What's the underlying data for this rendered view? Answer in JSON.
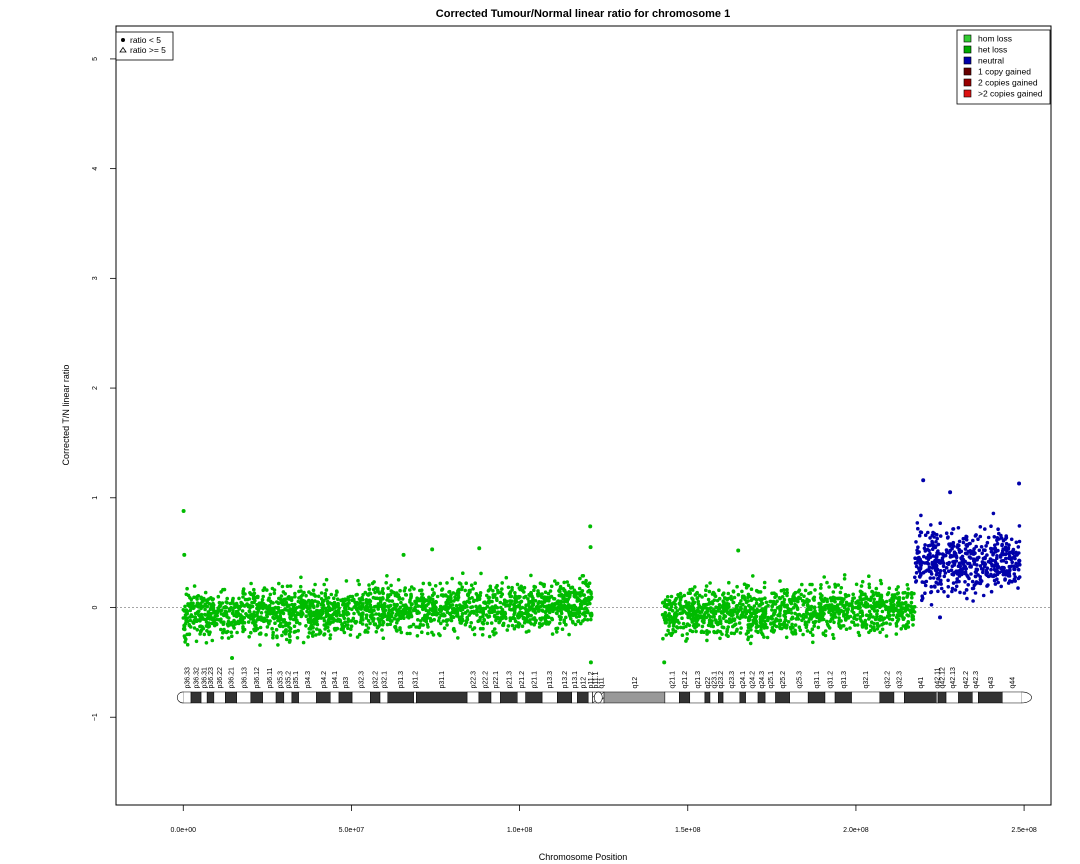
{
  "chart_data": {
    "type": "scatter",
    "title": "Corrected Tumour/Normal linear ratio for chromosome  1",
    "xlabel": "Chromosome Position",
    "ylabel": "Corrected T/N linear ratio",
    "xlim": [
      -20000000,
      258000000
    ],
    "ylim": [
      -1.8,
      5.3
    ],
    "x_ticks": [
      0,
      50000000,
      100000000,
      150000000,
      200000000,
      250000000
    ],
    "x_tick_labels": [
      "0.0e+00",
      "5.0e+07",
      "1.0e+08",
      "1.5e+08",
      "2.0e+08",
      "2.5e+08"
    ],
    "y_ticks": [
      -1,
      0,
      1,
      2,
      3,
      4,
      5
    ],
    "y_tick_labels": [
      "−1",
      "0",
      "1",
      "2",
      "3",
      "4",
      "5"
    ],
    "reference_line": 0,
    "shape_legend": {
      "placement": "top-left",
      "entries": [
        {
          "symbol": "circle",
          "label": "ratio < 5"
        },
        {
          "symbol": "triangle",
          "label": "ratio >= 5"
        }
      ]
    },
    "state_legend": {
      "placement": "top-right",
      "entries": [
        {
          "label": "hom loss",
          "color": "#33cc33"
        },
        {
          "label": "het loss",
          "color": "#00aa00"
        },
        {
          "label": "neutral",
          "color": "#0000aa"
        },
        {
          "label": "1 copy gained",
          "color": "#660000"
        },
        {
          "label": "2 copies gained",
          "color": "#990000"
        },
        {
          "label": ">2 copies gained",
          "color": "#dd1111"
        }
      ]
    },
    "series": [
      {
        "state": "het loss",
        "color": "#00bb00",
        "x_start": 0,
        "x_end": 121500000,
        "mean_start": -0.08,
        "mean_end": 0.04,
        "spread": 0.26
      },
      {
        "state": "het loss",
        "color": "#00bb00",
        "x_start": 142500000,
        "x_end": 217500000,
        "mean_start": -0.06,
        "mean_end": 0.0,
        "spread": 0.26
      },
      {
        "state": "neutral",
        "color": "#0000aa",
        "x_start": 217500000,
        "x_end": 249000000,
        "mean_start": 0.42,
        "mean_end": 0.42,
        "spread": 0.34
      }
    ],
    "highlight_points": [
      {
        "x": 100000,
        "y": 0.88,
        "color": "#00bb00"
      },
      {
        "x": 300000,
        "y": 0.48,
        "color": "#00bb00"
      },
      {
        "x": 65500000,
        "y": 0.48,
        "color": "#00bb00"
      },
      {
        "x": 74000000,
        "y": 0.53,
        "color": "#00bb00"
      },
      {
        "x": 88000000,
        "y": 0.54,
        "color": "#00bb00"
      },
      {
        "x": 121000000,
        "y": 0.74,
        "color": "#00bb00"
      },
      {
        "x": 121100000,
        "y": 0.55,
        "color": "#00bb00"
      },
      {
        "x": 121200000,
        "y": -0.5,
        "color": "#00bb00"
      },
      {
        "x": 14500000,
        "y": -0.46,
        "color": "#00bb00"
      },
      {
        "x": 143000000,
        "y": -0.5,
        "color": "#00bb00"
      },
      {
        "x": 165000000,
        "y": 0.52,
        "color": "#00bb00"
      },
      {
        "x": 220000000,
        "y": 1.16,
        "color": "#0000aa"
      },
      {
        "x": 228000000,
        "y": 1.05,
        "color": "#0000aa"
      },
      {
        "x": 248500000,
        "y": 1.13,
        "color": "#0000aa"
      },
      {
        "x": 225000000,
        "y": -0.09,
        "color": "#0000aa"
      }
    ],
    "ideogram": {
      "y": -0.82,
      "bands": [
        {
          "name": "p36.33",
          "start": 0,
          "end": 2300000,
          "stain": "gneg"
        },
        {
          "name": "p36.32",
          "start": 2300000,
          "end": 5300000,
          "stain": "gpos"
        },
        {
          "name": "p36.31",
          "start": 5300000,
          "end": 7100000,
          "stain": "gneg"
        },
        {
          "name": "p36.23",
          "start": 7100000,
          "end": 9100000,
          "stain": "gpos"
        },
        {
          "name": "p36.22",
          "start": 9100000,
          "end": 12500000,
          "stain": "gneg"
        },
        {
          "name": "p36.21",
          "start": 12500000,
          "end": 15900000,
          "stain": "gpos"
        },
        {
          "name": "p36.13",
          "start": 15900000,
          "end": 20100000,
          "stain": "gneg"
        },
        {
          "name": "p36.12",
          "start": 20100000,
          "end": 23600000,
          "stain": "gpos"
        },
        {
          "name": "p36.11",
          "start": 23600000,
          "end": 27600000,
          "stain": "gneg"
        },
        {
          "name": "p35.3",
          "start": 27600000,
          "end": 29900000,
          "stain": "gpos"
        },
        {
          "name": "p35.2",
          "start": 29900000,
          "end": 32300000,
          "stain": "gneg"
        },
        {
          "name": "p35.1",
          "start": 32300000,
          "end": 34300000,
          "stain": "gpos"
        },
        {
          "name": "p34.3",
          "start": 34300000,
          "end": 39600000,
          "stain": "gneg"
        },
        {
          "name": "p34.2",
          "start": 39600000,
          "end": 43700000,
          "stain": "gpos"
        },
        {
          "name": "p34.1",
          "start": 43700000,
          "end": 46300000,
          "stain": "gneg"
        },
        {
          "name": "p33",
          "start": 46300000,
          "end": 50200000,
          "stain": "gpos"
        },
        {
          "name": "p32.3",
          "start": 50200000,
          "end": 55600000,
          "stain": "gneg"
        },
        {
          "name": "p32.2",
          "start": 55600000,
          "end": 58500000,
          "stain": "gpos"
        },
        {
          "name": "p32.1",
          "start": 58500000,
          "end": 60800000,
          "stain": "gneg"
        },
        {
          "name": "p31.3",
          "start": 60800000,
          "end": 68500000,
          "stain": "gpos"
        },
        {
          "name": "p31.2",
          "start": 68500000,
          "end": 69300000,
          "stain": "gneg"
        },
        {
          "name": "p31.1",
          "start": 69300000,
          "end": 84400000,
          "stain": "gpos"
        },
        {
          "name": "p22.3",
          "start": 84400000,
          "end": 87900000,
          "stain": "gneg"
        },
        {
          "name": "p22.2",
          "start": 87900000,
          "end": 91500000,
          "stain": "gpos"
        },
        {
          "name": "p22.1",
          "start": 91500000,
          "end": 94300000,
          "stain": "gneg"
        },
        {
          "name": "p21.3",
          "start": 94300000,
          "end": 99300000,
          "stain": "gpos"
        },
        {
          "name": "p21.2",
          "start": 99300000,
          "end": 101800000,
          "stain": "gneg"
        },
        {
          "name": "p21.1",
          "start": 101800000,
          "end": 106700000,
          "stain": "gpos"
        },
        {
          "name": "p13.3",
          "start": 106700000,
          "end": 111200000,
          "stain": "gneg"
        },
        {
          "name": "p13.2",
          "start": 111200000,
          "end": 115500000,
          "stain": "gpos"
        },
        {
          "name": "p13.1",
          "start": 115500000,
          "end": 117200000,
          "stain": "gneg"
        },
        {
          "name": "p12",
          "start": 117200000,
          "end": 120400000,
          "stain": "gpos"
        },
        {
          "name": "p11.2",
          "start": 120400000,
          "end": 121700000,
          "stain": "gneg"
        },
        {
          "name": "p11.1",
          "start": 121700000,
          "end": 123400000,
          "stain": "acen"
        },
        {
          "name": "q11",
          "start": 123400000,
          "end": 125100000,
          "stain": "acen"
        },
        {
          "name": "q12",
          "start": 125100000,
          "end": 143200000,
          "stain": "gvar"
        },
        {
          "name": "q21.1",
          "start": 143200000,
          "end": 147500000,
          "stain": "gneg"
        },
        {
          "name": "q21.2",
          "start": 147500000,
          "end": 150600000,
          "stain": "gpos"
        },
        {
          "name": "q21.3",
          "start": 150600000,
          "end": 155100000,
          "stain": "gneg"
        },
        {
          "name": "q22",
          "start": 155100000,
          "end": 156600000,
          "stain": "gpos"
        },
        {
          "name": "q23.1",
          "start": 156600000,
          "end": 159100000,
          "stain": "gneg"
        },
        {
          "name": "q23.2",
          "start": 159100000,
          "end": 160500000,
          "stain": "gpos"
        },
        {
          "name": "q23.3",
          "start": 160500000,
          "end": 165500000,
          "stain": "gneg"
        },
        {
          "name": "q24.1",
          "start": 165500000,
          "end": 167200000,
          "stain": "gpos"
        },
        {
          "name": "q24.2",
          "start": 167200000,
          "end": 170900000,
          "stain": "gneg"
        },
        {
          "name": "q24.3",
          "start": 170900000,
          "end": 173000000,
          "stain": "gpos"
        },
        {
          "name": "q25.1",
          "start": 173000000,
          "end": 176100000,
          "stain": "gneg"
        },
        {
          "name": "q25.2",
          "start": 176100000,
          "end": 180300000,
          "stain": "gpos"
        },
        {
          "name": "q25.3",
          "start": 180300000,
          "end": 185800000,
          "stain": "gneg"
        },
        {
          "name": "q31.1",
          "start": 185800000,
          "end": 190800000,
          "stain": "gpos"
        },
        {
          "name": "q31.2",
          "start": 190800000,
          "end": 193800000,
          "stain": "gneg"
        },
        {
          "name": "q31.3",
          "start": 193800000,
          "end": 198700000,
          "stain": "gpos"
        },
        {
          "name": "q32.1",
          "start": 198700000,
          "end": 207100000,
          "stain": "gneg"
        },
        {
          "name": "q32.2",
          "start": 207100000,
          "end": 211300000,
          "stain": "gpos"
        },
        {
          "name": "q32.3",
          "start": 211300000,
          "end": 214400000,
          "stain": "gneg"
        },
        {
          "name": "q41",
          "start": 214400000,
          "end": 223900000,
          "stain": "gpos"
        },
        {
          "name": "q42.11",
          "start": 223900000,
          "end": 224400000,
          "stain": "gneg"
        },
        {
          "name": "q42.12",
          "start": 224400000,
          "end": 226800000,
          "stain": "gpos"
        },
        {
          "name": "q42.13",
          "start": 226800000,
          "end": 230500000,
          "stain": "gneg"
        },
        {
          "name": "q42.2",
          "start": 230500000,
          "end": 234600000,
          "stain": "gpos"
        },
        {
          "name": "q42.3",
          "start": 234600000,
          "end": 236400000,
          "stain": "gneg"
        },
        {
          "name": "q43",
          "start": 236400000,
          "end": 243500000,
          "stain": "gpos"
        },
        {
          "name": "q44",
          "start": 243500000,
          "end": 249250000,
          "stain": "gneg"
        }
      ]
    }
  }
}
